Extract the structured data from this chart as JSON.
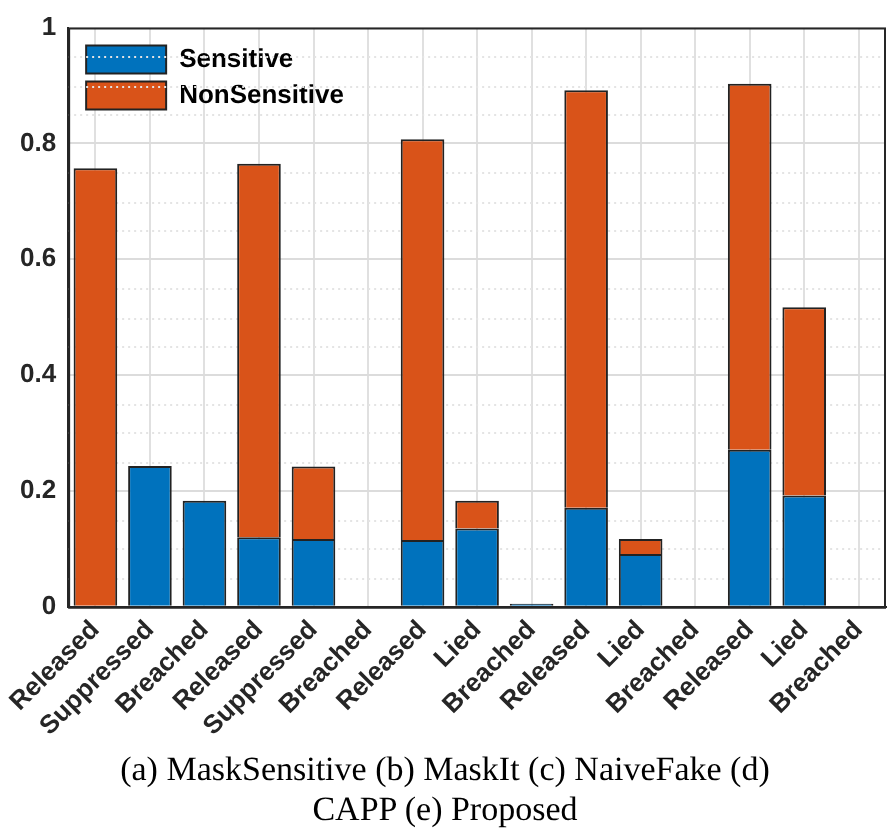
{
  "chart_data": {
    "type": "bar",
    "stacked": true,
    "xlabel": "(a) MaskSensitive (b) MaskIt (c) NaiveFake (d) CAPP (e) Proposed",
    "categories": [
      "Released",
      "Suppressed",
      "Breached",
      "Released",
      "Suppressed",
      "Breached",
      "Released",
      "Lied",
      "Breached",
      "Released",
      "Lied",
      "Breached",
      "Released",
      "Lied",
      "Breached"
    ],
    "series": [
      {
        "name": "Sensitive",
        "color": "#0072bd",
        "values": [
          0,
          0.243,
          0.183,
          0.12,
          0.117,
          0,
          0.115,
          0.135,
          0.005,
          0.171,
          0.091,
          0,
          0.271,
          0.192,
          0
        ]
      },
      {
        "name": "NonSensitive",
        "color": "#d95319",
        "values": [
          0.757,
          0,
          0,
          0.645,
          0.125,
          0,
          0.692,
          0.048,
          0,
          0.721,
          0.026,
          0,
          0.632,
          0.325,
          0
        ]
      }
    ],
    "ylim": [
      0,
      1
    ],
    "yticks": [
      0,
      0.2,
      0.4,
      0.6,
      0.8,
      1
    ],
    "grid": true,
    "legend": "top left"
  }
}
